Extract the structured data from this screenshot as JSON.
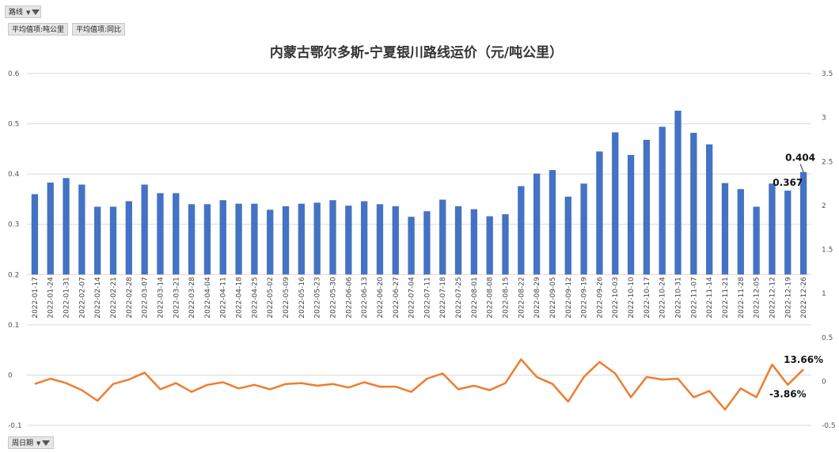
{
  "filters": {
    "route_label": "路线",
    "value_tag_1": "平均值项:吨公里",
    "value_tag_2": "平均值项:同比",
    "date_label": "周日期"
  },
  "chart_data": {
    "type": "bar",
    "title": "内蒙古鄂尔多斯-宁夏银川路线运价（元/吨公里）",
    "categories": [
      "2022-01-17",
      "2022-01-24",
      "2022-01-31",
      "2022-02-07",
      "2022-02-14",
      "2022-02-21",
      "2022-02-28",
      "2022-03-07",
      "2022-03-14",
      "2022-03-21",
      "2022-03-28",
      "2022-04-04",
      "2022-04-11",
      "2022-04-18",
      "2022-04-25",
      "2022-05-02",
      "2022-05-09",
      "2022-05-16",
      "2022-05-23",
      "2022-05-30",
      "2022-06-06",
      "2022-06-13",
      "2022-06-20",
      "2022-06-27",
      "2022-07-04",
      "2022-07-11",
      "2022-07-18",
      "2022-07-25",
      "2022-08-01",
      "2022-08-08",
      "2022-08-15",
      "2022-08-22",
      "2022-08-29",
      "2022-09-05",
      "2022-09-12",
      "2022-09-19",
      "2022-09-26",
      "2022-10-03",
      "2022-10-10",
      "2022-10-17",
      "2022-10-24",
      "2022-10-31",
      "2022-11-07",
      "2022-11-14",
      "2022-11-21",
      "2022-11-28",
      "2022-12-05",
      "2022-12-12",
      "2022-12-19",
      "2022-12-26"
    ],
    "series": [
      {
        "type": "bar",
        "axis": "left",
        "color": "#4472C4",
        "values": [
          0.36,
          0.383,
          0.392,
          0.379,
          0.335,
          0.335,
          0.346,
          0.379,
          0.362,
          0.362,
          0.34,
          0.34,
          0.348,
          0.341,
          0.341,
          0.329,
          0.336,
          0.341,
          0.343,
          0.348,
          0.337,
          0.346,
          0.34,
          0.336,
          0.315,
          0.326,
          0.349,
          0.336,
          0.33,
          0.316,
          0.32,
          0.376,
          0.401,
          0.408,
          0.355,
          0.381,
          0.445,
          0.483,
          0.438,
          0.468,
          0.494,
          0.526,
          0.482,
          0.459,
          0.382,
          0.37,
          0.335,
          0.381,
          0.367,
          0.404
        ]
      },
      {
        "type": "line",
        "axis": "right",
        "color": "#ED7D31",
        "values": [
          -0.03,
          0.03,
          -0.02,
          -0.1,
          -0.22,
          -0.03,
          0.02,
          0.1,
          -0.09,
          -0.02,
          -0.12,
          -0.04,
          -0.01,
          -0.08,
          -0.04,
          -0.09,
          -0.03,
          -0.02,
          -0.05,
          -0.03,
          -0.07,
          -0.01,
          -0.06,
          -0.06,
          -0.12,
          0.03,
          0.09,
          -0.09,
          -0.05,
          -0.1,
          -0.02,
          0.25,
          0.05,
          -0.03,
          -0.23,
          0.05,
          0.22,
          0.09,
          -0.18,
          0.05,
          0.02,
          0.03,
          -0.18,
          -0.11,
          -0.32,
          -0.08,
          -0.18,
          0.19,
          -0.0386,
          0.1366
        ]
      }
    ],
    "ylim": [
      -0.1,
      0.6
    ],
    "yticks": [
      "0.6",
      "0.5",
      "0.4",
      "0.3",
      "0.2",
      "0.1",
      "0",
      "-0.1"
    ],
    "y2lim": [
      -0.5,
      3.5
    ],
    "y2ticks": [
      "3.5",
      "3",
      "2.5",
      "2",
      "1.5",
      "1",
      "0.5",
      "0",
      "-0.5"
    ],
    "data_labels": [
      {
        "series": 0,
        "index": 48,
        "text": "0.367"
      },
      {
        "series": 0,
        "index": 49,
        "text": "0.404"
      },
      {
        "series": 1,
        "index": 49,
        "text": "13.66%"
      },
      {
        "series": 1,
        "index": 48,
        "text": "-3.86%"
      }
    ],
    "grid": true,
    "legend": "none"
  }
}
